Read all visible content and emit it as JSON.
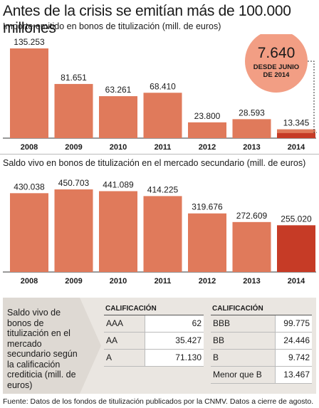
{
  "title": "Antes de la crisis se emitían más de 100.000 millones",
  "chart_data": [
    {
      "type": "bar",
      "title": "Importe emitido en bonos de titulización (mill. de euros)",
      "categories": [
        "2008",
        "2009",
        "2010",
        "2011",
        "2012",
        "2013",
        "2014"
      ],
      "values": [
        135253,
        81651,
        63261,
        68410,
        23800,
        28593,
        13345
      ],
      "value_labels": [
        "135.253",
        "81.651",
        "63.261",
        "68.410",
        "23.800",
        "28.593",
        "13.345"
      ],
      "highlight": {
        "category": "2014",
        "value": 7640,
        "value_label": "7.640",
        "label": "DESDE JUNIO DE 2014"
      },
      "colors": {
        "bar": "#e07a5b",
        "highlight": "#c63b26",
        "badge": "#f29e84"
      }
    },
    {
      "type": "bar",
      "title": "Saldo vivo en bonos de titulización en el mercado secundario (mill. de euros)",
      "categories": [
        "2008",
        "2009",
        "2010",
        "2011",
        "2012",
        "2013",
        "2014"
      ],
      "values": [
        430038,
        450703,
        441089,
        414225,
        319676,
        272609,
        255020
      ],
      "value_labels": [
        "430.038",
        "450.703",
        "441.089",
        "414.225",
        "319.676",
        "272.609",
        "255.020"
      ],
      "colors": {
        "bar": "#e07a5b",
        "last": "#c63b26"
      }
    }
  ],
  "rating": {
    "intro": "Saldo vivo de bonos de titulización en el mercado secundario según la calificación crediticia (mill. de euros)",
    "header": "CALIFICACIÓN",
    "left": [
      {
        "label": "AAA",
        "value": "62"
      },
      {
        "label": "AA",
        "value": "35.427"
      },
      {
        "label": "A",
        "value": "71.130"
      }
    ],
    "right": [
      {
        "label": "BBB",
        "value": "99.775"
      },
      {
        "label": "BB",
        "value": "24.446"
      },
      {
        "label": "B",
        "value": "9.742"
      },
      {
        "label": "Menor que B",
        "value": "13.467"
      }
    ]
  },
  "footer": "Fuente: Datos de los fondos de titulización publicados por la CNMV. Datos a cierre de agosto."
}
